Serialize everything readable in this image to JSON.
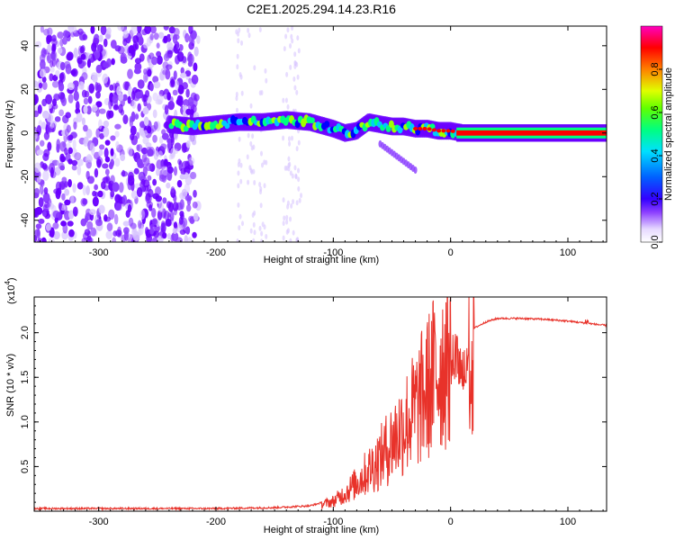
{
  "title": "C2E1.2025.294.14.23.R16",
  "colors": {
    "spectrogram_palette": [
      "#ffffff",
      "#d9c6ff",
      "#8a3cff",
      "#6a00ff",
      "#0000ff",
      "#00c8ff",
      "#00ff80",
      "#a0ff00",
      "#ffff00",
      "#ff8000",
      "#ff0000",
      "#ff00ff"
    ],
    "snr_line": "#e8322a",
    "axis": "#000000"
  },
  "chart_data": [
    {
      "type": "heatmap",
      "name": "spectrogram",
      "xlabel": "Height of straight line (km)",
      "ylabel": "Frequency (Hz)",
      "xlim": [
        -355,
        133
      ],
      "ylim": [
        -50,
        49
      ],
      "xticks": [
        -300,
        -200,
        -100,
        0,
        100
      ],
      "xtick_labels": [
        "-300",
        "-200",
        "-100",
        "0",
        "100"
      ],
      "yticks": [
        -40,
        -20,
        0,
        20,
        40
      ],
      "ytick_labels": [
        "-40",
        "-20",
        "0",
        "20",
        "40"
      ],
      "colorbar": {
        "label": "Normalized spectral amplitude",
        "range": [
          0,
          1
        ],
        "ticks": [
          0.0,
          0.2,
          0.4,
          0.6,
          0.8
        ],
        "tick_labels": [
          "0.0",
          "0.2",
          "0.4",
          "0.6",
          "0.8"
        ]
      },
      "band_center_hz": [
        [
          -240,
          4
        ],
        [
          -220,
          3
        ],
        [
          -200,
          4
        ],
        [
          -180,
          5
        ],
        [
          -160,
          5
        ],
        [
          -140,
          6
        ],
        [
          -120,
          5
        ],
        [
          -100,
          2
        ],
        [
          -90,
          0
        ],
        [
          -80,
          1
        ],
        [
          -70,
          5
        ],
        [
          -60,
          4
        ],
        [
          -50,
          3
        ],
        [
          -40,
          3
        ],
        [
          -30,
          2
        ],
        [
          -20,
          2
        ],
        [
          -10,
          1
        ],
        [
          0,
          1
        ],
        [
          10,
          0
        ],
        [
          50,
          0
        ],
        [
          100,
          0
        ],
        [
          133,
          0
        ]
      ],
      "noise_region_km": [
        -355,
        -225
      ],
      "grid": false
    },
    {
      "type": "line",
      "name": "snr",
      "xlabel": "Height of straight line (km)",
      "ylabel": "SNR (10 * v/v)",
      "y_multiplier_label": "(x10",
      "y_multiplier_exp": "4",
      "y_multiplier_close": ")",
      "xlim": [
        -355,
        133
      ],
      "ylim": [
        0,
        2.4
      ],
      "xticks": [
        -300,
        -200,
        -100,
        0,
        100
      ],
      "xtick_labels": [
        "-300",
        "-200",
        "-100",
        "0",
        "100"
      ],
      "yticks": [
        0.5,
        1.0,
        1.5,
        2.0
      ],
      "ytick_labels": [
        "0.5",
        "1.0",
        "1.5",
        "2.0"
      ],
      "envelope_x": [
        -355,
        -200,
        -150,
        -120,
        -100,
        -90,
        -80,
        -70,
        -60,
        -50,
        -40,
        -30,
        -20,
        -15,
        -10,
        -5,
        0,
        5,
        10,
        15,
        20,
        30,
        40,
        60,
        80,
        100,
        120,
        133
      ],
      "envelope_y": [
        0.02,
        0.02,
        0.03,
        0.05,
        0.12,
        0.22,
        0.35,
        0.5,
        0.65,
        0.85,
        1.05,
        1.25,
        1.5,
        1.65,
        1.75,
        1.85,
        1.95,
        2.05,
        1.95,
        1.95,
        2.05,
        2.12,
        2.16,
        2.16,
        2.15,
        2.13,
        2.1,
        2.08
      ],
      "grid": false
    }
  ]
}
